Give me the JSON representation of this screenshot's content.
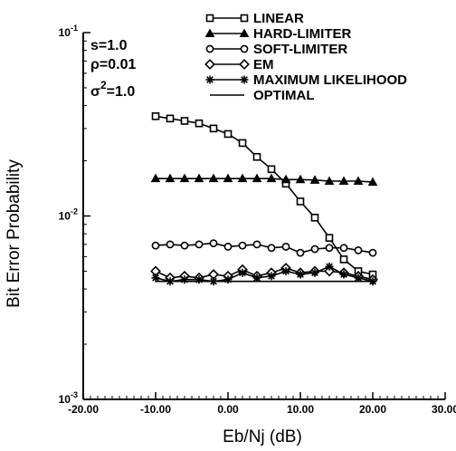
{
  "chart_data": {
    "type": "line",
    "title": "",
    "xlabel": "Eb/Nj (dB)",
    "ylabel": "Bit Error Probability",
    "xlim": [
      -20,
      30
    ],
    "ylim": [
      0.001,
      0.1
    ],
    "yscale": "log",
    "grid": false,
    "legend_position": "top-right",
    "x_tick_labels": [
      "-20.00",
      "-10.00",
      "0.00",
      "10.00",
      "20.00",
      "30.00"
    ],
    "y_tick_labels": [
      {
        "base": "10",
        "exp": "-1"
      },
      {
        "base": "10",
        "exp": "-2"
      },
      {
        "base": "10",
        "exp": "-3"
      }
    ],
    "annotations": [
      {
        "id": "s",
        "text": "s=1.0"
      },
      {
        "id": "rho",
        "text": "ρ=0.01"
      },
      {
        "id": "sigma",
        "base": "σ",
        "sup": "2",
        "rest": "=1.0"
      }
    ],
    "series": [
      {
        "name": "LINEAR",
        "marker": "square",
        "x": [
          -10,
          -8,
          -6,
          -4,
          -2,
          0,
          2,
          4,
          6,
          8,
          10,
          12,
          14,
          16,
          18,
          20
        ],
        "y": [
          0.035,
          0.034,
          0.033,
          0.032,
          0.03,
          0.028,
          0.025,
          0.021,
          0.018,
          0.015,
          0.012,
          0.0098,
          0.0076,
          0.0058,
          0.005,
          0.0048
        ]
      },
      {
        "name": "HARD-LIMITER",
        "marker": "triangle",
        "x": [
          -10,
          -8,
          -6,
          -4,
          -2,
          0,
          2,
          4,
          6,
          8,
          10,
          12,
          14,
          16,
          18,
          20
        ],
        "y": [
          0.016,
          0.016,
          0.016,
          0.016,
          0.016,
          0.016,
          0.016,
          0.016,
          0.016,
          0.0158,
          0.0158,
          0.0157,
          0.0155,
          0.0155,
          0.0155,
          0.0153
        ]
      },
      {
        "name": "SOFT-LIMITER",
        "marker": "circle",
        "x": [
          -10,
          -8,
          -6,
          -4,
          -2,
          0,
          2,
          4,
          6,
          8,
          10,
          12,
          14,
          16,
          18,
          20
        ],
        "y": [
          0.0069,
          0.007,
          0.0069,
          0.007,
          0.0071,
          0.0068,
          0.0069,
          0.007,
          0.0067,
          0.0068,
          0.0063,
          0.0066,
          0.0067,
          0.0067,
          0.0065,
          0.0063
        ]
      },
      {
        "name": "EM",
        "marker": "diamond",
        "x": [
          -10,
          -8,
          -6,
          -4,
          -2,
          0,
          2,
          4,
          6,
          8,
          10,
          12,
          14,
          16,
          18,
          20
        ],
        "y": [
          0.005,
          0.0046,
          0.0047,
          0.0046,
          0.0048,
          0.0047,
          0.0051,
          0.0047,
          0.0049,
          0.0052,
          0.0049,
          0.005,
          0.005,
          0.0049,
          0.0047,
          0.0045
        ]
      },
      {
        "name": "MAXIMUM LIKELIHOOD",
        "marker": "star",
        "x": [
          -10,
          -8,
          -6,
          -4,
          -2,
          0,
          2,
          4,
          6,
          8,
          10,
          12,
          14,
          16,
          18,
          20
        ],
        "y": [
          0.0046,
          0.0044,
          0.0045,
          0.0045,
          0.0044,
          0.0045,
          0.0049,
          0.0046,
          0.0047,
          0.005,
          0.0048,
          0.0049,
          0.0053,
          0.0048,
          0.0046,
          0.0044
        ]
      },
      {
        "name": "OPTIMAL",
        "marker": "none",
        "x": [
          -10,
          20
        ],
        "y": [
          0.0044,
          0.0044
        ]
      }
    ]
  }
}
